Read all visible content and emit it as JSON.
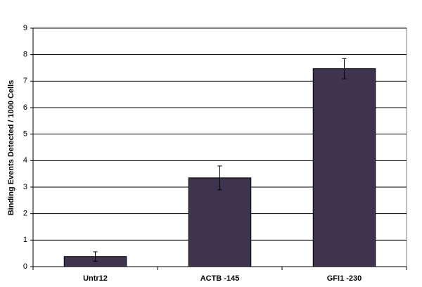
{
  "chart_data": {
    "type": "bar",
    "y_label": "Binding Events Detected / 1000 Cells",
    "categories": [
      "Untr12",
      "ACTB -145",
      "GFI1 -230"
    ],
    "values": [
      0.38,
      3.35,
      7.47
    ],
    "errors": [
      0.18,
      0.45,
      0.38
    ],
    "color": "#3f3450",
    "ylim": [
      0,
      9
    ],
    "yticks": [
      0,
      1,
      2,
      3,
      4,
      5,
      6,
      7,
      8,
      9
    ],
    "grid": true
  }
}
